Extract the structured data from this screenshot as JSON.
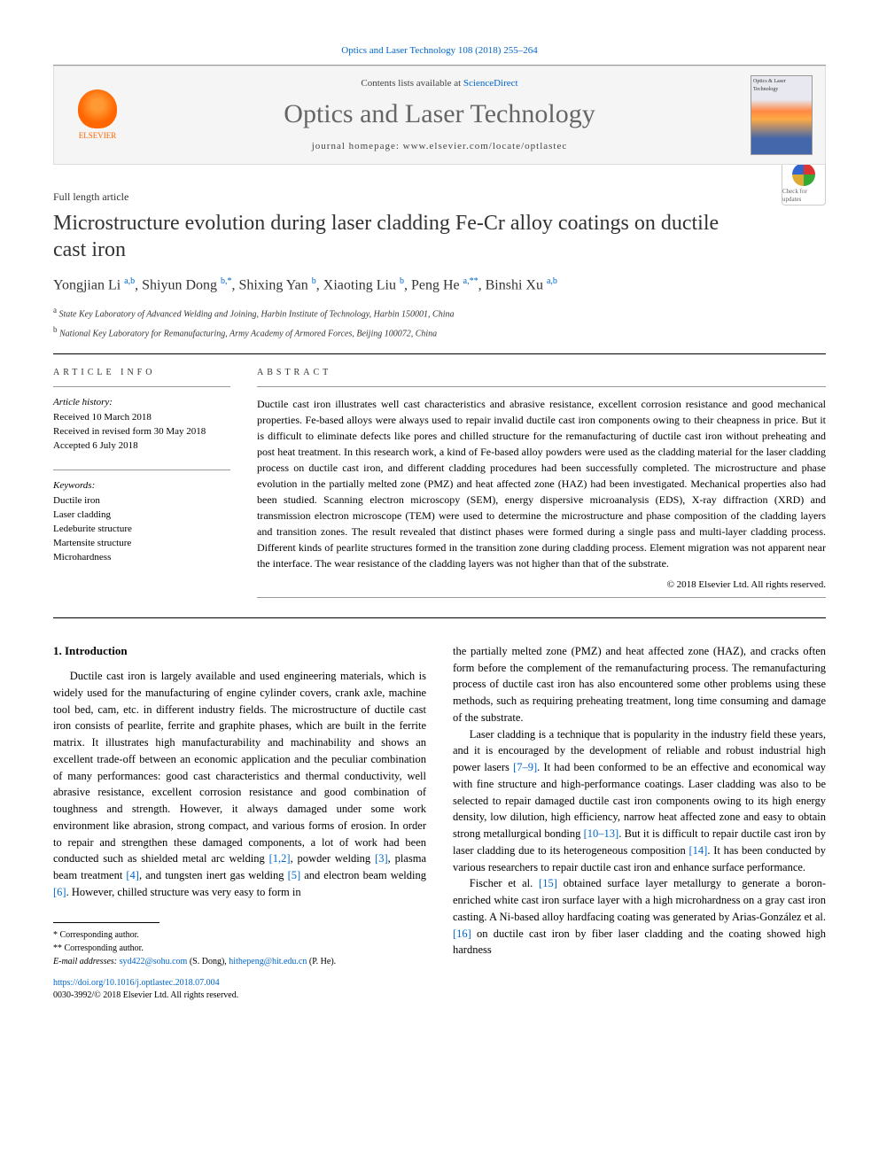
{
  "citation": "Optics and Laser Technology 108 (2018) 255–264",
  "banner": {
    "publisher": "ELSEVIER",
    "contents_prefix": "Contents lists available at ",
    "contents_link": "ScienceDirect",
    "journal_name": "Optics and Laser Technology",
    "homepage": "journal homepage: www.elsevier.com/locate/optlastec",
    "cover_label": "Optics & Laser Technology"
  },
  "article": {
    "type": "Full length article",
    "title": "Microstructure evolution during laser cladding Fe-Cr alloy coatings on ductile cast iron",
    "check_badge": "Check for updates",
    "authors_html": "Yongjian Li <sup>a,b</sup>, Shiyun Dong <sup>b,*</sup>, Shixing Yan <sup>b</sup>, Xiaoting Liu <sup>b</sup>, Peng He <sup>a,**</sup>, Binshi Xu <sup>a,b</sup>",
    "affiliations": [
      {
        "sup": "a",
        "text": "State Key Laboratory of Advanced Welding and Joining, Harbin Institute of Technology, Harbin 150001, China"
      },
      {
        "sup": "b",
        "text": "National Key Laboratory for Remanufacturing, Army Academy of Armored Forces, Beijing 100072, China"
      }
    ]
  },
  "info": {
    "header": "ARTICLE INFO",
    "history_label": "Article history:",
    "history": "Received 10 March 2018\nReceived in revised form 30 May 2018\nAccepted 6 July 2018",
    "keywords_label": "Keywords:",
    "keywords": "Ductile iron\nLaser cladding\nLedeburite structure\nMartensite structure\nMicrohardness"
  },
  "abstract": {
    "header": "ABSTRACT",
    "text": "Ductile cast iron illustrates well cast characteristics and abrasive resistance, excellent corrosion resistance and good mechanical properties. Fe-based alloys were always used to repair invalid ductile cast iron components owing to their cheapness in price. But it is difficult to eliminate defects like pores and chilled structure for the remanufacturing of ductile cast iron without preheating and post heat treatment. In this research work, a kind of Fe-based alloy powders were used as the cladding material for the laser cladding process on ductile cast iron, and different cladding procedures had been successfully completed. The microstructure and phase evolution in the partially melted zone (PMZ) and heat affected zone (HAZ) had been investigated. Mechanical properties also had been studied. Scanning electron microscopy (SEM), energy dispersive microanalysis (EDS), X-ray diffraction (XRD) and transmission electron microscope (TEM) were used to determine the microstructure and phase composition of the cladding layers and transition zones. The result revealed that distinct phases were formed during a single pass and multi-layer cladding process. Different kinds of pearlite structures formed in the transition zone during cladding process. Element migration was not apparent near the interface. The wear resistance of the cladding layers was not higher than that of the substrate.",
    "copyright": "© 2018 Elsevier Ltd. All rights reserved."
  },
  "body": {
    "section1_heading": "1. Introduction",
    "col1_p1": "Ductile cast iron is largely available and used engineering materials, which is widely used for the manufacturing of engine cylinder covers, crank axle, machine tool bed, cam, etc. in different industry fields. The microstructure of ductile cast iron consists of pearlite, ferrite and graphite phases, which are built in the ferrite matrix. It illustrates high manufacturability and machinability and shows an excellent trade-off between an economic application and the peculiar combination of many performances: good cast characteristics and thermal conductivity, well abrasive resistance, excellent corrosion resistance and good combination of toughness and strength. However, it always damaged under some work environment like abrasion, strong compact, and various forms of erosion. In order to repair and strengthen these damaged components, a lot of work had been conducted such as shielded metal arc welding ",
    "ref_1_2": "[1,2]",
    "col1_p1b": ", powder welding ",
    "ref_3": "[3]",
    "col1_p1c": ", plasma beam treatment ",
    "ref_4": "[4]",
    "col1_p1d": ", and tungsten inert gas welding ",
    "ref_5": "[5]",
    "col1_p1e": " and electron beam welding ",
    "ref_6": "[6]",
    "col1_p1f": ". However, chilled structure was very easy to form in",
    "col2_p1": "the partially melted zone (PMZ) and heat affected zone (HAZ), and cracks often form before the complement of the remanufacturing process. The remanufacturing process of ductile cast iron has also encountered some other problems using these methods, such as requiring preheating treatment, long time consuming and damage of the substrate.",
    "col2_p2a": "Laser cladding is a technique that is popularity in the industry field these years, and it is encouraged by the development of reliable and robust industrial high power lasers ",
    "ref_7_9": "[7–9]",
    "col2_p2b": ". It had been conformed to be an effective and economical way with fine structure and high-performance coatings. Laser cladding was also to be selected to repair damaged ductile cast iron components owing to its high energy density, low dilution, high efficiency, narrow heat affected zone and easy to obtain strong metallurgical bonding ",
    "ref_10_13": "[10–13]",
    "col2_p2c": ". But it is difficult to repair ductile cast iron by laser cladding due to its heterogeneous composition ",
    "ref_14": "[14]",
    "col2_p2d": ". It has been conducted by various researchers to repair ductile cast iron and enhance surface performance.",
    "col2_p3a": "Fischer et al. ",
    "ref_15": "[15]",
    "col2_p3b": " obtained surface layer metallurgy to generate a boron-enriched white cast iron surface layer with a high microhardness on a gray cast iron casting. A Ni-based alloy hardfacing coating was generated by Arias-González et al. ",
    "ref_16": "[16]",
    "col2_p3c": " on ductile cast iron by fiber laser cladding and the coating showed high hardness"
  },
  "footnotes": {
    "corr1": "* Corresponding author.",
    "corr2": "** Corresponding author.",
    "email_label": "E-mail addresses: ",
    "email1": "syd422@sohu.com",
    "email1_who": " (S. Dong), ",
    "email2": "hithepeng@hit.edu.cn",
    "email2_who": " (P. He)."
  },
  "doi": {
    "url": "https://doi.org/10.1016/j.optlastec.2018.07.004",
    "issn_line": "0030-3992/© 2018 Elsevier Ltd. All rights reserved."
  },
  "colors": {
    "link": "#0066cc",
    "publisher_orange": "#ff6600",
    "banner_bg": "#f5f5f5",
    "text": "#000000",
    "muted": "#666666"
  }
}
